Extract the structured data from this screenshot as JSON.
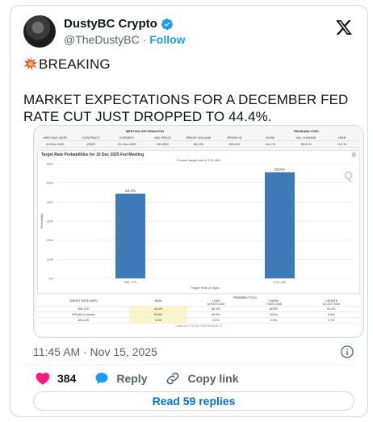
{
  "tweet": {
    "author": {
      "name": "DustyBC Crypto",
      "handle": "@TheDustyBC",
      "separator": "·",
      "follow_label": "Follow"
    },
    "text_line1": "BREAKING",
    "text_line2": "MARKET EXPECTATIONS FOR A DECEMBER FED RATE CUT JUST DROPPED TO 44.4%.",
    "emoji": "collision-emoji",
    "timestamp": "11:45 AM · Nov 15, 2025",
    "likes": "384",
    "reply_label": "Reply",
    "copy_link_label": "Copy link",
    "read_replies_label": "Read 59 replies"
  },
  "colors": {
    "verified": "#1d9bf0",
    "like": "#f91880",
    "link": "#006fd6",
    "bar": "#3e7ab8"
  },
  "meeting_info": {
    "section_title": "MEETING INFORMATION",
    "prob_title": "PROBABILITIES",
    "headers": [
      "MEETING DATE",
      "CONTRACT",
      "EXPIRES",
      "MID PRICE",
      "PRIOR VOLUME",
      "PRIOR OI",
      "EASE",
      "NO CHANGE",
      "HIKE"
    ],
    "values": [
      "10 Dec 2025",
      "ZQZ5",
      "31 Dec 2025",
      "96.1900",
      "60,131",
      "394,411",
      "44.4 %",
      "55.6 %",
      "0.0 %"
    ]
  },
  "chart_data": {
    "type": "bar",
    "title": "Target Rate Probabilities for 10 Dec 2025 Fed Meeting",
    "subtitle": "Current target rate is 375–400",
    "xlabel": "Target Rate (in bps)",
    "ylabel": "Probability",
    "categories": [
      "350–375",
      "375–400"
    ],
    "values": [
      44.4,
      55.6
    ],
    "value_labels": [
      "44.4%",
      "55.6%"
    ],
    "ylim": [
      0,
      60
    ],
    "yticks": [
      "0%",
      "10%",
      "20%",
      "30%",
      "40%",
      "50%",
      "60%"
    ],
    "grid": true,
    "watermark": "Q"
  },
  "prob_table": {
    "title": "PROBABILITY(%)",
    "col_target": "TARGET RATE (BPS)",
    "cols": [
      {
        "top": "NOW",
        "sub": ""
      },
      {
        "top": "1 DAY",
        "sub": "14 NOV 2025"
      },
      {
        "top": "1 WEEK",
        "sub": "7 NOV 2025"
      },
      {
        "top": "1 MONTH",
        "sub": "14 OCT 2025"
      }
    ],
    "rows": [
      {
        "rate": "350-375",
        "now": "44.4%",
        "d1": "50.1%",
        "w1": "66.9%",
        "m1": "94.4%"
      },
      {
        "rate": "375-400 (Current)",
        "now": "55.6%",
        "d1": "49.9%",
        "w1": "33.1%",
        "m1": "5.6%"
      },
      {
        "rate": "400-425",
        "now": "0.0%",
        "d1": "0.0%",
        "w1": "0.0%",
        "m1": "0.1%"
      }
    ],
    "footer": "* Data as of 14 Nov 2025 08:06:58 CT"
  }
}
